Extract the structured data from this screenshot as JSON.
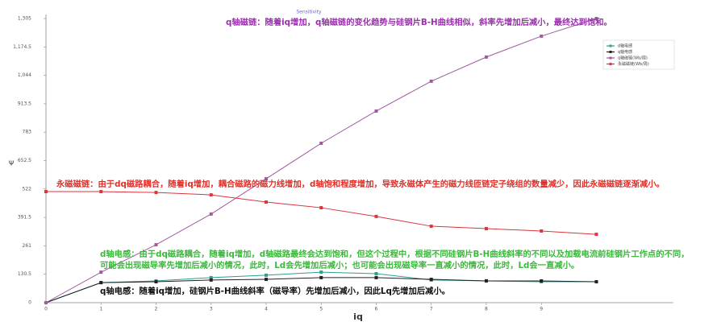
{
  "chart_data": {
    "type": "line",
    "title": "Sensitivity",
    "x_label": "iq",
    "y_label": "Ψ",
    "x": [
      0,
      1,
      2,
      3,
      4,
      5,
      6,
      7,
      8,
      9,
      10
    ],
    "series": [
      {
        "name": "d轴电感",
        "color": "#2f9e8f",
        "values": [
          0,
          92,
          100,
          115,
          126,
          140,
          133,
          104,
          100,
          96,
          96
        ]
      },
      {
        "name": "q轴电感",
        "color": "#222222",
        "values": [
          0,
          92,
          96,
          104,
          107,
          115,
          115,
          107,
          100,
          100,
          96
        ]
      },
      {
        "name": "q轴磁链(Wb/周)",
        "color": "#a05a9e",
        "values": [
          0,
          140,
          266,
          407,
          569,
          732,
          880,
          1017,
          1128,
          1224,
          1305
        ]
      },
      {
        "name": "永磁磁链(Wb/周)",
        "color": "#d9363e",
        "values": [
          510,
          510,
          506,
          495,
          462,
          436,
          396,
          351,
          340,
          329,
          314
        ]
      }
    ],
    "xlim": [
      0,
      11.4
    ],
    "xticks": [
      0,
      1,
      2,
      3,
      4,
      5,
      6,
      7,
      8,
      9
    ],
    "ylim": [
      0,
      1305
    ],
    "yticks": [
      0,
      130.5,
      261,
      391.5,
      522,
      652.5,
      783,
      913.5,
      {
        "value": 1044,
        "label": "1,044"
      },
      {
        "value": 1174.5,
        "label": "1,174.5"
      },
      {
        "value": 1305,
        "label": "1,305"
      }
    ],
    "grid": false,
    "legend": "top-right",
    "annotations": [
      {
        "text": "q轴磁链：随着iq增加，q轴磁链的变化趋势与硅钢片B-H曲线相似，斜率先增加后减小，最终达到饱和。",
        "color": "#9b2fae"
      },
      {
        "text": "永磁磁链：由于dq磁路耦合，随着iq增加，耦合磁路的磁力线增加，d轴饱和程度增加，导致永磁体产生的磁力线匝链定子绕组的数量减少，因此永磁磁链逐渐减小。",
        "color": "#e0302a"
      },
      {
        "text": "d轴电感：由于dq磁路耦合，随着iq增加，d轴磁路最终会达到饱和，但这个过程中，根据不同硅钢片B-H曲线斜率的不同以及加载电流前硅钢片工作点的不同，",
        "color": "#3cb83c"
      },
      {
        "text": "可能会出现磁导率先增加后减小的情况，此时，Ld会先增加后减小；也可能会出现磁导率一直减小的情况，此时，Ld会一直减小。",
        "color": "#3cb83c"
      },
      {
        "text": "q轴电感：随着iq增加，硅钢片B-H曲线斜率（磁导率）先增加后减小，因此Lq先增加后减小。",
        "color": "#111111"
      }
    ]
  }
}
